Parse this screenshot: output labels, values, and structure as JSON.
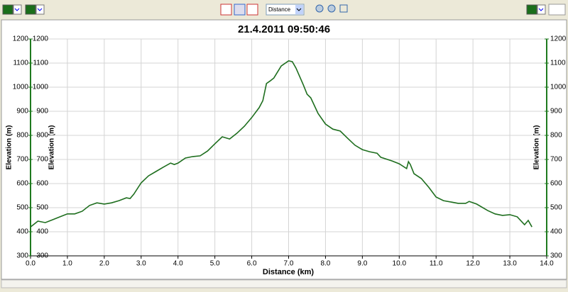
{
  "toolbar": {
    "axis_select": "Distance"
  },
  "chart_data": {
    "type": "line",
    "title": "21.4.2011 09:50:46",
    "xlabel": "Distance (km)",
    "ylabel": "Elevation (m)",
    "x": [
      0.0,
      0.2,
      0.4,
      0.6,
      0.8,
      1.0,
      1.2,
      1.4,
      1.6,
      1.8,
      2.0,
      2.2,
      2.4,
      2.6,
      2.7,
      2.8,
      3.0,
      3.2,
      3.4,
      3.6,
      3.8,
      3.9,
      4.0,
      4.2,
      4.4,
      4.6,
      4.8,
      5.0,
      5.2,
      5.4,
      5.6,
      5.8,
      6.0,
      6.2,
      6.3,
      6.4,
      6.5,
      6.6,
      6.8,
      7.0,
      7.1,
      7.2,
      7.4,
      7.5,
      7.6,
      7.8,
      8.0,
      8.2,
      8.4,
      8.6,
      8.8,
      9.0,
      9.2,
      9.4,
      9.5,
      9.8,
      10.0,
      10.2,
      10.25,
      10.3,
      10.4,
      10.6,
      10.8,
      11.0,
      11.2,
      11.6,
      11.8,
      11.9,
      12.1,
      12.4,
      12.6,
      12.8,
      13.0,
      13.2,
      13.4,
      13.5,
      13.6
    ],
    "values": [
      420,
      444,
      438,
      450,
      462,
      474,
      474,
      485,
      509,
      520,
      515,
      520,
      529,
      541,
      538,
      556,
      603,
      632,
      650,
      668,
      685,
      679,
      685,
      706,
      712,
      715,
      735,
      765,
      794,
      785,
      809,
      838,
      874,
      915,
      944,
      1015,
      1026,
      1038,
      1088,
      1109,
      1106,
      1079,
      1009,
      971,
      956,
      891,
      847,
      826,
      818,
      788,
      759,
      741,
      732,
      726,
      709,
      694,
      682,
      662,
      691,
      679,
      641,
      621,
      585,
      544,
      529,
      518,
      518,
      526,
      515,
      488,
      474,
      468,
      471,
      462,
      429,
      447,
      420
    ],
    "color": "#1e6e1e",
    "axis_color": "#1f7a1f",
    "xlim": [
      0,
      14
    ],
    "ylim": [
      300,
      1200
    ],
    "xticks": [
      {
        "value": 0,
        "label": "0.0"
      },
      {
        "value": 1,
        "label": "1.0"
      },
      {
        "value": 2,
        "label": "2.0"
      },
      {
        "value": 3,
        "label": "3.0"
      },
      {
        "value": 4,
        "label": "4.0"
      },
      {
        "value": 5,
        "label": "5.0"
      },
      {
        "value": 6,
        "label": "6.0"
      },
      {
        "value": 7,
        "label": "7.0"
      },
      {
        "value": 8,
        "label": "8.0"
      },
      {
        "value": 9,
        "label": "9.0"
      },
      {
        "value": 10,
        "label": "10.0"
      },
      {
        "value": 11,
        "label": "11.0"
      },
      {
        "value": 12,
        "label": "12.0"
      },
      {
        "value": 13,
        "label": "13.0"
      },
      {
        "value": 14,
        "label": "14.0"
      }
    ],
    "yticks": [
      300,
      400,
      500,
      600,
      700,
      800,
      900,
      1000,
      1100,
      1200
    ],
    "grid": true
  }
}
